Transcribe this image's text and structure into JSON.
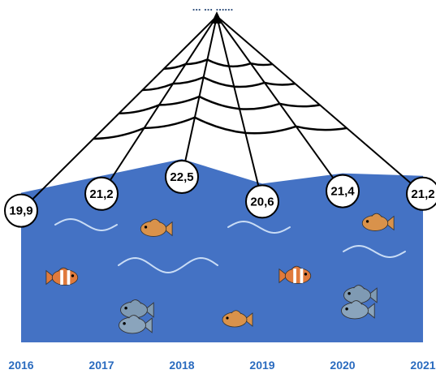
{
  "title": "... ... ......",
  "colors": {
    "water": "#4472c4",
    "net": "#000000",
    "axis_label": "#2a6bbf",
    "wave": "#c9dcf5"
  },
  "chart_data": {
    "type": "area",
    "x": [
      "2016",
      "2017",
      "2018",
      "2019",
      "2020",
      "2021"
    ],
    "values": [
      19.9,
      21.2,
      22.5,
      20.6,
      21.4,
      21.2
    ],
    "value_labels": [
      "19,9",
      "21,2",
      "22,5",
      "20,6",
      "21,4",
      "21,2"
    ],
    "legend": "none",
    "grid": false
  }
}
